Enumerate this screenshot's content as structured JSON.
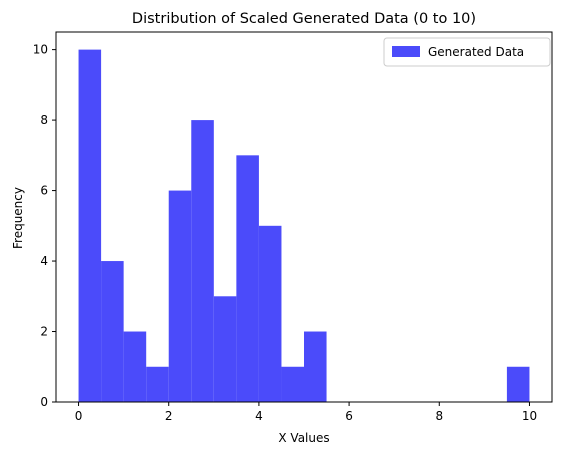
{
  "chart_data": {
    "type": "bar",
    "title": "Distribution of Scaled Generated Data (0 to 10)",
    "xlabel": "X Values",
    "ylabel": "Frequency",
    "xlim": [
      -0.5,
      10.5
    ],
    "ylim": [
      0,
      10.5
    ],
    "xticks": [
      "0",
      "2",
      "4",
      "6",
      "8",
      "10"
    ],
    "yticks": [
      "0",
      "2",
      "4",
      "6",
      "8",
      "10"
    ],
    "grid": false,
    "legend_position": "top-right",
    "bin_edges": [
      0.0,
      0.5,
      1.0,
      1.5,
      2.0,
      2.5,
      3.0,
      3.5,
      4.0,
      4.5,
      5.0,
      5.5,
      6.0,
      6.5,
      7.0,
      7.5,
      8.0,
      8.5,
      9.0,
      9.5,
      10.0
    ],
    "series": [
      {
        "name": "Generated Data",
        "color": "#4b4bfa",
        "values": [
          10,
          4,
          2,
          1,
          6,
          8,
          3,
          7,
          5,
          1,
          2,
          0,
          0,
          0,
          0,
          0,
          0,
          0,
          0,
          1
        ]
      }
    ]
  }
}
